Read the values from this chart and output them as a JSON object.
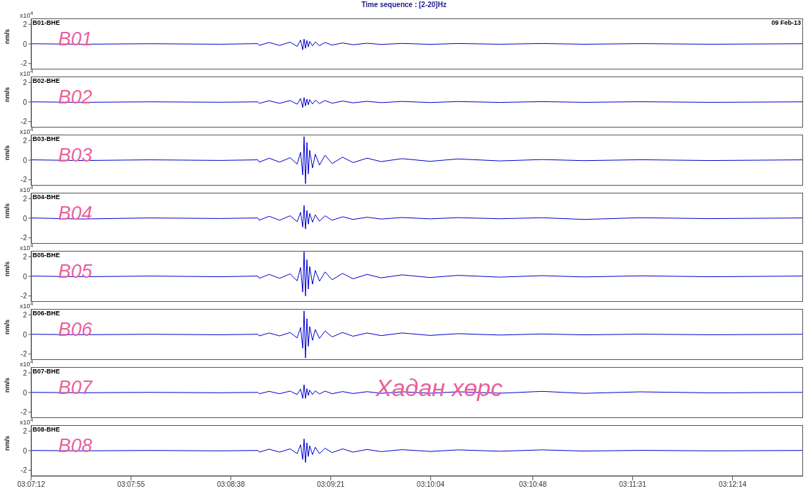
{
  "chart_data": [
    {
      "type": "line",
      "title": "Time sequence : [2-20]Hz",
      "subtitle": "09 Feb-13",
      "ylabel": "nm/s",
      "annotations": [
        "B01-BHE",
        "B01",
        "x10$^{4}$"
      ],
      "tick_labels": "y",
      "xlim": [
        3.12,
        3.21232
      ],
      "ylim": [
        -2.6,
        2.6
      ],
      "yticks": [
        -2,
        0,
        2
      ],
      "x": [
        3.12,
        3.12586,
        3.13423,
        3.1426,
        3.14712,
        3.14729,
        3.14846,
        3.14971,
        3.15097,
        3.15181,
        3.15222,
        3.15248,
        3.15264,
        3.15281,
        3.15298,
        3.15315,
        3.15331,
        3.15365,
        3.15398,
        3.15448,
        3.15515,
        3.15599,
        3.15725,
        3.1585,
        3.16018,
        3.16185,
        3.16436,
        3.16771,
        3.17106,
        3.17608,
        3.1811,
        3.18612,
        3.19282,
        3.20119,
        3.21232
      ],
      "series": [
        {
          "color": "#0000cc",
          "values": [
            0.02,
            -0.03,
            0.02,
            -0.03,
            0.03,
            -0.15,
            0.15,
            -0.15,
            0.18,
            -0.25,
            0.4,
            -0.6,
            0.5,
            -0.45,
            0.35,
            -0.3,
            0.25,
            -0.2,
            0.2,
            -0.18,
            0.15,
            -0.12,
            0.1,
            -0.08,
            0.07,
            -0.05,
            0.05,
            -0.04,
            0.04,
            -0.03,
            0.04,
            -0.03,
            0.03,
            -0.03,
            0.02
          ]
        }
      ]
    },
    {
      "type": "line",
      "ylabel": "nm/s",
      "annotations": [
        "B02-BHE",
        "B02",
        "x10$^{4}$"
      ],
      "tick_labels": "y",
      "xlim": [
        3.12,
        3.21232
      ],
      "ylim": [
        -2.6,
        2.6
      ],
      "yticks": [
        -2,
        0,
        2
      ],
      "x": [
        3.12,
        3.12586,
        3.13423,
        3.1426,
        3.14712,
        3.14729,
        3.14846,
        3.14971,
        3.15097,
        3.15181,
        3.15222,
        3.15248,
        3.15264,
        3.15281,
        3.15298,
        3.15315,
        3.15331,
        3.15365,
        3.15398,
        3.15448,
        3.15515,
        3.15599,
        3.15725,
        3.1585,
        3.16018,
        3.16185,
        3.16436,
        3.16771,
        3.17106,
        3.17608,
        3.1811,
        3.18612,
        3.19282,
        3.20119,
        3.21232
      ],
      "series": [
        {
          "color": "#0000cc",
          "values": [
            0.02,
            -0.03,
            0.02,
            -0.02,
            0.02,
            -0.13,
            0.13,
            -0.13,
            0.15,
            -0.22,
            0.35,
            -0.55,
            0.45,
            -0.4,
            0.3,
            -0.28,
            0.25,
            -0.2,
            0.18,
            -0.15,
            0.15,
            -0.12,
            0.1,
            -0.08,
            0.07,
            -0.06,
            0.06,
            -0.05,
            0.05,
            -0.04,
            0.04,
            -0.03,
            0.03,
            -0.03,
            0.02
          ]
        }
      ]
    },
    {
      "type": "line",
      "ylabel": "nm/s",
      "annotations": [
        "B03-BHE",
        "B03",
        "x10$^{4}$"
      ],
      "tick_labels": "y",
      "xlim": [
        3.12,
        3.21232
      ],
      "ylim": [
        -2.6,
        2.6
      ],
      "yticks": [
        -2,
        0,
        2
      ],
      "x": [
        3.12,
        3.12586,
        3.13423,
        3.1426,
        3.14712,
        3.14729,
        3.14846,
        3.14971,
        3.15097,
        3.15181,
        3.15222,
        3.15248,
        3.15264,
        3.15281,
        3.15298,
        3.15315,
        3.15331,
        3.15365,
        3.15398,
        3.15448,
        3.15515,
        3.15599,
        3.15725,
        3.1585,
        3.16018,
        3.16185,
        3.16436,
        3.16771,
        3.17106,
        3.17608,
        3.1811,
        3.18612,
        3.19282,
        3.20119,
        3.21232
      ],
      "series": [
        {
          "color": "#0000cc",
          "values": [
            0.03,
            -0.04,
            0.03,
            -0.03,
            0.03,
            -0.2,
            0.2,
            -0.2,
            0.25,
            -0.4,
            0.8,
            -1.5,
            2.4,
            -2.4,
            1.8,
            -1.4,
            1,
            -0.8,
            0.6,
            -0.5,
            0.5,
            -0.35,
            0.3,
            -0.25,
            0.2,
            -0.15,
            0.15,
            -0.12,
            0.12,
            -0.08,
            0.06,
            -0.05,
            0.04,
            -0.04,
            0.03
          ]
        }
      ]
    },
    {
      "type": "line",
      "ylabel": "nm/s",
      "annotations": [
        "B04-BHE",
        "B04",
        "x10$^{4}$"
      ],
      "tick_labels": "y",
      "xlim": [
        3.12,
        3.21232
      ],
      "ylim": [
        -2.6,
        2.6
      ],
      "yticks": [
        -2,
        0,
        2
      ],
      "x": [
        3.12,
        3.12586,
        3.13423,
        3.1426,
        3.14712,
        3.14729,
        3.14846,
        3.14971,
        3.15097,
        3.15181,
        3.15222,
        3.15248,
        3.15264,
        3.15281,
        3.15298,
        3.15315,
        3.15331,
        3.15365,
        3.15398,
        3.15448,
        3.15515,
        3.15599,
        3.15725,
        3.1585,
        3.16018,
        3.16185,
        3.16436,
        3.16771,
        3.17106,
        3.17608,
        3.1811,
        3.18612,
        3.19282,
        3.20119,
        3.21232
      ],
      "series": [
        {
          "color": "#0000cc",
          "values": [
            0.03,
            -0.08,
            0.03,
            -0.03,
            0.03,
            -0.2,
            0.2,
            -0.2,
            0.25,
            -0.35,
            0.6,
            -0.9,
            1.3,
            -1.1,
            0.8,
            -0.6,
            0.5,
            -0.4,
            0.35,
            -0.3,
            0.25,
            -0.2,
            0.15,
            -0.12,
            0.1,
            -0.08,
            0.07,
            -0.06,
            0.06,
            -0.05,
            0.05,
            -0.12,
            0.05,
            -0.04,
            0.03
          ]
        }
      ]
    },
    {
      "type": "line",
      "ylabel": "nm/s",
      "annotations": [
        "B05-BHE",
        "B05",
        "x10$^{4}$"
      ],
      "tick_labels": "y",
      "xlim": [
        3.12,
        3.21232
      ],
      "ylim": [
        -2.6,
        2.6
      ],
      "yticks": [
        -2,
        0,
        2
      ],
      "x": [
        3.12,
        3.12586,
        3.13423,
        3.1426,
        3.14712,
        3.14729,
        3.14846,
        3.14971,
        3.15097,
        3.15181,
        3.15222,
        3.15248,
        3.15264,
        3.15281,
        3.15298,
        3.15315,
        3.15331,
        3.15365,
        3.15398,
        3.15448,
        3.15515,
        3.15599,
        3.15725,
        3.1585,
        3.16018,
        3.16185,
        3.16436,
        3.16771,
        3.17106,
        3.17608,
        3.1811,
        3.18612,
        3.19282,
        3.20119,
        3.21232
      ],
      "series": [
        {
          "color": "#0000cc",
          "values": [
            0.03,
            -0.04,
            0.03,
            -0.04,
            0.03,
            -0.2,
            0.2,
            -0.2,
            0.25,
            -0.45,
            0.9,
            -1.6,
            2.5,
            -2,
            1.7,
            -1.3,
            1,
            -0.8,
            0.6,
            -0.5,
            0.45,
            -0.35,
            0.3,
            -0.25,
            0.2,
            -0.15,
            0.15,
            -0.12,
            0.1,
            -0.08,
            0.07,
            -0.06,
            0.05,
            -0.04,
            0.03
          ]
        }
      ]
    },
    {
      "type": "line",
      "ylabel": "nm/s",
      "annotations": [
        "B06-BHE",
        "B06",
        "x10$^{4}$"
      ],
      "tick_labels": "y",
      "xlim": [
        3.12,
        3.21232
      ],
      "ylim": [
        -2.6,
        2.6
      ],
      "yticks": [
        -2,
        0,
        2
      ],
      "x": [
        3.12,
        3.12586,
        3.13423,
        3.1426,
        3.14712,
        3.14729,
        3.14846,
        3.14971,
        3.15097,
        3.15181,
        3.15222,
        3.15248,
        3.15264,
        3.15281,
        3.15298,
        3.15315,
        3.15331,
        3.15365,
        3.15398,
        3.15448,
        3.15515,
        3.15599,
        3.15725,
        3.1585,
        3.16018,
        3.16185,
        3.16436,
        3.16771,
        3.17106,
        3.17608,
        3.1811,
        3.18612,
        3.19282,
        3.20119,
        3.21232
      ],
      "series": [
        {
          "color": "#0000cc",
          "values": [
            0.02,
            -0.03,
            0.02,
            -0.03,
            0.02,
            -0.15,
            0.15,
            -0.15,
            0.2,
            -0.35,
            0.7,
            -1.4,
            2.4,
            -2.4,
            1.6,
            -1.2,
            0.8,
            -0.6,
            0.5,
            -0.4,
            0.35,
            -0.25,
            0.2,
            -0.18,
            0.15,
            -0.12,
            0.15,
            -0.1,
            0.08,
            -0.06,
            0.05,
            -0.04,
            0.03,
            -0.03,
            0.02
          ]
        }
      ]
    },
    {
      "type": "line",
      "ylabel": "nm/s",
      "annotations": [
        "B07-BHE",
        "B07",
        "x10$^{4}$",
        "Хадан хөрс"
      ],
      "tick_labels": "y",
      "xlim": [
        3.12,
        3.21232
      ],
      "ylim": [
        -2.6,
        2.6
      ],
      "yticks": [
        -2,
        0,
        2
      ],
      "x": [
        3.12,
        3.12586,
        3.13423,
        3.1426,
        3.14712,
        3.14729,
        3.14846,
        3.14971,
        3.15097,
        3.15181,
        3.15222,
        3.15248,
        3.15264,
        3.15281,
        3.15298,
        3.15315,
        3.15331,
        3.15365,
        3.15398,
        3.15448,
        3.15515,
        3.15599,
        3.15725,
        3.1585,
        3.16018,
        3.16185,
        3.16436,
        3.16771,
        3.17106,
        3.17608,
        3.1811,
        3.18612,
        3.19282,
        3.20119,
        3.21232
      ],
      "series": [
        {
          "color": "#0000cc",
          "values": [
            0.02,
            -0.02,
            0.02,
            -0.02,
            0.02,
            -0.12,
            0.12,
            -0.12,
            0.15,
            -0.2,
            0.35,
            -0.6,
            0.8,
            -0.6,
            0.4,
            -0.3,
            0.25,
            -0.2,
            0.18,
            -0.15,
            0.15,
            -0.12,
            0.1,
            -0.1,
            0.09,
            -0.08,
            0.08,
            -0.07,
            0.08,
            -0.07,
            0.12,
            -0.08,
            0.07,
            -0.03,
            0.02
          ]
        }
      ]
    },
    {
      "type": "line",
      "ylabel": "nm/s",
      "annotations": [
        "B08-BHE",
        "B08",
        "x10$^{4}$"
      ],
      "xlim": [
        3.12,
        3.21232
      ],
      "xticks": [
        {
          "value": 3.12,
          "label": "03:07:12"
        },
        {
          "value": 3.131944,
          "label": "03:07:55"
        },
        {
          "value": 3.143889,
          "label": "03:08:38"
        },
        {
          "value": 3.155833,
          "label": "03:09:21"
        },
        {
          "value": 3.167778,
          "label": "03:10:04"
        },
        {
          "value": 3.18,
          "label": "03:10:48"
        },
        {
          "value": 3.191944,
          "label": "03:11:31"
        },
        {
          "value": 3.203889,
          "label": "03:12:14"
        }
      ],
      "ylim": [
        -2.6,
        2.6
      ],
      "yticks": [
        -2,
        0,
        2
      ],
      "x": [
        3.12,
        3.12586,
        3.13423,
        3.1426,
        3.14712,
        3.14729,
        3.14846,
        3.14971,
        3.15097,
        3.15181,
        3.15222,
        3.15248,
        3.15264,
        3.15281,
        3.15298,
        3.15315,
        3.15331,
        3.15365,
        3.15398,
        3.15448,
        3.15515,
        3.15599,
        3.15725,
        3.1585,
        3.16018,
        3.16185,
        3.16436,
        3.16771,
        3.17106,
        3.17608,
        3.1811,
        3.18612,
        3.19282,
        3.20119,
        3.21232
      ],
      "series": [
        {
          "color": "#0000cc",
          "values": [
            0.02,
            -0.02,
            0.02,
            -0.02,
            0.02,
            -0.15,
            0.15,
            -0.15,
            0.18,
            -0.3,
            0.6,
            -0.9,
            1.2,
            -1.2,
            0.8,
            -0.6,
            0.5,
            -0.4,
            0.35,
            -0.3,
            0.25,
            -0.2,
            0.18,
            -0.15,
            0.12,
            -0.1,
            0.1,
            -0.08,
            0.08,
            -0.06,
            0.08,
            -0.04,
            0.03,
            -0.02,
            0.02
          ]
        }
      ]
    }
  ]
}
